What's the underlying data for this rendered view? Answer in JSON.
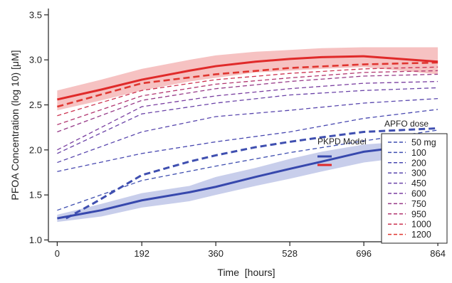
{
  "chart_data": {
    "type": "line",
    "title": "",
    "xlabel": "Time  [hours]",
    "ylabel": "PFOA Concentration (log 10)  [μM]",
    "xticks": [
      0,
      192,
      360,
      528,
      696,
      864
    ],
    "yticks": [
      1.0,
      1.5,
      2.0,
      2.5,
      3.0,
      3.5
    ],
    "xlim": [
      -20,
      880
    ],
    "ylim": [
      0.98,
      3.57
    ],
    "grid": false,
    "legend_title": "APFO dose",
    "legend_position": "right",
    "model_label": "PKPD Model",
    "series": [
      {
        "name": "50 mg",
        "color": "#3f4fb0",
        "dash": true,
        "width": 1.3,
        "x": [
          0,
          192,
          360,
          528,
          696,
          864
        ],
        "y": [
          1.33,
          1.66,
          1.82,
          1.97,
          2.1,
          2.22
        ]
      },
      {
        "name": "100",
        "color": "#3f4fb0",
        "dash": true,
        "width": 3.0,
        "x": [
          20,
          80,
          192,
          300,
          360,
          450,
          528,
          600,
          696,
          864
        ],
        "y": [
          1.24,
          1.4,
          1.72,
          1.87,
          1.94,
          2.03,
          2.09,
          2.14,
          2.2,
          2.24
        ]
      },
      {
        "name": "200",
        "color": "#4848b0",
        "dash": true,
        "width": 1.3,
        "x": [
          0,
          192,
          360,
          528,
          696,
          864
        ],
        "y": [
          1.76,
          1.96,
          2.09,
          2.2,
          2.35,
          2.45
        ]
      },
      {
        "name": "300",
        "color": "#5a48ae",
        "dash": true,
        "width": 1.3,
        "x": [
          0,
          192,
          360,
          528,
          696,
          864
        ],
        "y": [
          1.86,
          2.2,
          2.37,
          2.44,
          2.52,
          2.57
        ]
      },
      {
        "name": "450",
        "color": "#6b44a8",
        "dash": true,
        "width": 1.3,
        "x": [
          0,
          192,
          360,
          528,
          696,
          864
        ],
        "y": [
          1.96,
          2.4,
          2.52,
          2.61,
          2.66,
          2.69
        ]
      },
      {
        "name": "600",
        "color": "#7a3fa0",
        "dash": true,
        "width": 1.3,
        "x": [
          0,
          192,
          360,
          528,
          696,
          864
        ],
        "y": [
          2.0,
          2.48,
          2.6,
          2.68,
          2.74,
          2.76
        ]
      },
      {
        "name": "750",
        "color": "#963a88",
        "dash": true,
        "width": 1.3,
        "x": [
          0,
          192,
          360,
          528,
          696,
          864
        ],
        "y": [
          2.2,
          2.55,
          2.68,
          2.76,
          2.82,
          2.84
        ]
      },
      {
        "name": "950",
        "color": "#b23670",
        "dash": true,
        "width": 1.3,
        "x": [
          0,
          192,
          360,
          528,
          696,
          864
        ],
        "y": [
          2.28,
          2.6,
          2.73,
          2.8,
          2.86,
          2.88
        ]
      },
      {
        "name": "1000",
        "color": "#cc3350",
        "dash": true,
        "width": 1.3,
        "x": [
          0,
          192,
          360,
          528,
          696,
          864
        ],
        "y": [
          2.38,
          2.66,
          2.78,
          2.85,
          2.9,
          2.92
        ]
      },
      {
        "name": "1200",
        "color": "#e03630",
        "dash": true,
        "width": 2.6,
        "x": [
          0,
          192,
          360,
          528,
          696,
          864
        ],
        "y": [
          2.48,
          2.74,
          2.84,
          2.91,
          2.95,
          2.97
        ]
      }
    ],
    "model_series": [
      {
        "color": "#3748ad",
        "width": 3.0,
        "x": [
          0,
          100,
          192,
          300,
          360,
          450,
          528,
          600,
          696,
          864
        ],
        "y": [
          1.24,
          1.33,
          1.44,
          1.53,
          1.59,
          1.7,
          1.79,
          1.87,
          1.98,
          2.08
        ]
      },
      {
        "color": "#e02a2a",
        "width": 3.0,
        "x": [
          0,
          100,
          192,
          300,
          360,
          450,
          528,
          600,
          696,
          864
        ],
        "y": [
          2.56,
          2.67,
          2.78,
          2.88,
          2.93,
          2.98,
          3.01,
          3.03,
          3.04,
          2.98
        ]
      }
    ],
    "bands": [
      {
        "color": "#9aa6da",
        "opacity": 0.55,
        "x": [
          0,
          100,
          192,
          300,
          360,
          450,
          528,
          600,
          696,
          864
        ],
        "upper": [
          1.28,
          1.4,
          1.52,
          1.6,
          1.7,
          1.8,
          1.9,
          1.98,
          2.06,
          2.12
        ],
        "lower": [
          1.2,
          1.26,
          1.36,
          1.43,
          1.5,
          1.6,
          1.68,
          1.76,
          1.86,
          1.96
        ]
      },
      {
        "color": "#ee8f8f",
        "opacity": 0.55,
        "x": [
          0,
          100,
          192,
          300,
          360,
          450,
          528,
          600,
          696,
          864
        ],
        "upper": [
          2.66,
          2.78,
          2.9,
          3.0,
          3.05,
          3.09,
          3.11,
          3.13,
          3.14,
          3.14
        ],
        "lower": [
          2.44,
          2.55,
          2.66,
          2.76,
          2.8,
          2.86,
          2.88,
          2.9,
          2.92,
          2.84
        ]
      }
    ]
  }
}
